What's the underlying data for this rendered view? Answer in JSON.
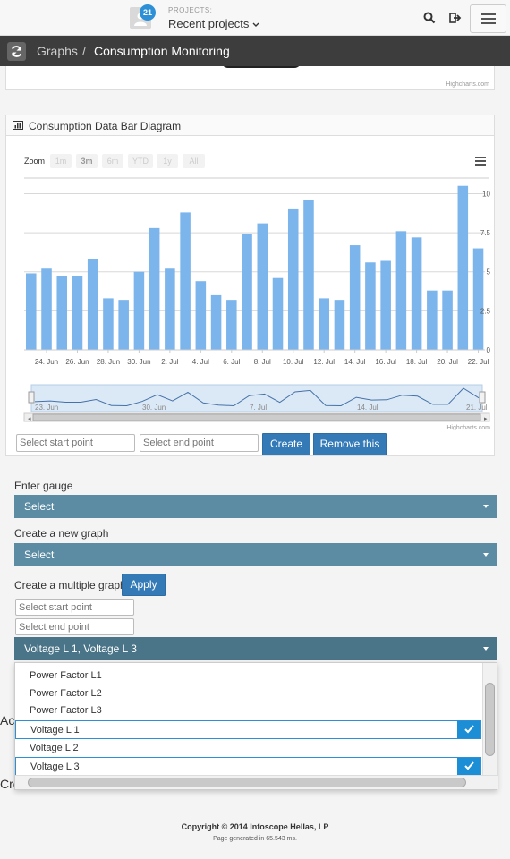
{
  "header": {
    "badge_count": "21",
    "projects_caption": "PROJECTS:",
    "projects_dropdown": "Recent projects"
  },
  "breadcrumb": {
    "parent": "Graphs",
    "separator": "/",
    "current": "Consumption Monitoring"
  },
  "credits": "Highcharts.com",
  "chart_panel": {
    "title": "Consumption Data Bar Diagram",
    "zoom_label": "Zoom",
    "zoom_buttons": [
      "1m",
      "3m",
      "6m",
      "YTD",
      "1y",
      "All"
    ],
    "start_placeholder": "Select start point",
    "end_placeholder": "Select end point",
    "create_label": "Create",
    "remove_label": "Remove this"
  },
  "chart_data": {
    "type": "bar",
    "categories": [
      "23. Jun",
      "24. Jun",
      "25. Jun",
      "26. Jun",
      "27. Jun",
      "28. Jun",
      "29. Jun",
      "30. Jun",
      "1. Jul",
      "2. Jul",
      "3. Jul",
      "4. Jul",
      "5. Jul",
      "6. Jul",
      "7. Jul",
      "8. Jul",
      "9. Jul",
      "10. Jul",
      "11. Jul",
      "12. Jul",
      "13. Jul",
      "14. Jul",
      "15. Jul",
      "16. Jul",
      "17. Jul",
      "18. Jul",
      "19. Jul",
      "20. Jul",
      "21. Jul",
      "22. Jul"
    ],
    "x_tick_labels": [
      "24. Jun",
      "26. Jun",
      "28. Jun",
      "30. Jun",
      "2. Jul",
      "4. Jul",
      "6. Jul",
      "8. Jul",
      "10. Jul",
      "12. Jul",
      "14. Jul",
      "16. Jul",
      "18. Jul",
      "20. Jul",
      "22. Jul"
    ],
    "values": [
      4.9,
      5.2,
      4.7,
      4.7,
      5.8,
      3.3,
      3.2,
      5.0,
      7.8,
      5.2,
      8.8,
      4.4,
      3.5,
      3.2,
      7.4,
      8.1,
      4.6,
      9.0,
      9.6,
      3.3,
      3.2,
      6.7,
      5.6,
      5.7,
      7.6,
      7.2,
      3.8,
      3.8,
      10.5,
      6.5
    ],
    "y_tick_labels": [
      "0",
      "2.5",
      "5",
      "7.5",
      "10"
    ],
    "ylim": [
      0,
      11
    ],
    "navigator_labels": [
      "23. Jun",
      "30. Jun",
      "7. Jul",
      "14. Jul",
      "21. Jul"
    ],
    "bar_color": "#7cb5ec",
    "grid": true
  },
  "form": {
    "gauge_label": "Enter gauge",
    "gauge_value": "Select",
    "new_graph_label": "Create a new graph",
    "new_graph_value": "Select",
    "multiple_label": "Create a multiple graph",
    "apply_label": "Apply",
    "start_placeholder": "Select start point",
    "end_placeholder": "Select end point",
    "multi_value": "Voltage L 1, Voltage L 3"
  },
  "multi_options": [
    {
      "label": "Power Factor L1",
      "selected": false
    },
    {
      "label": "Power Factor L2",
      "selected": false
    },
    {
      "label": "Power Factor L3",
      "selected": false
    },
    {
      "label": "Voltage L 1",
      "selected": true
    },
    {
      "label": "Voltage L 2",
      "selected": false
    },
    {
      "label": "Voltage L 3",
      "selected": true
    }
  ],
  "behind_text": {
    "a": "Ac",
    "b": "Cre"
  },
  "footer": {
    "copyright": "Copyright © 2014 Infoscope Hellas, LP",
    "generated": "Page generated in 65.543 ms."
  },
  "colors": {
    "accent_blue": "#337ab7",
    "select_bar": "#5c8ca3",
    "breadcrumb_bg": "#3d3d3d",
    "check_blue": "#1c8ed6"
  }
}
